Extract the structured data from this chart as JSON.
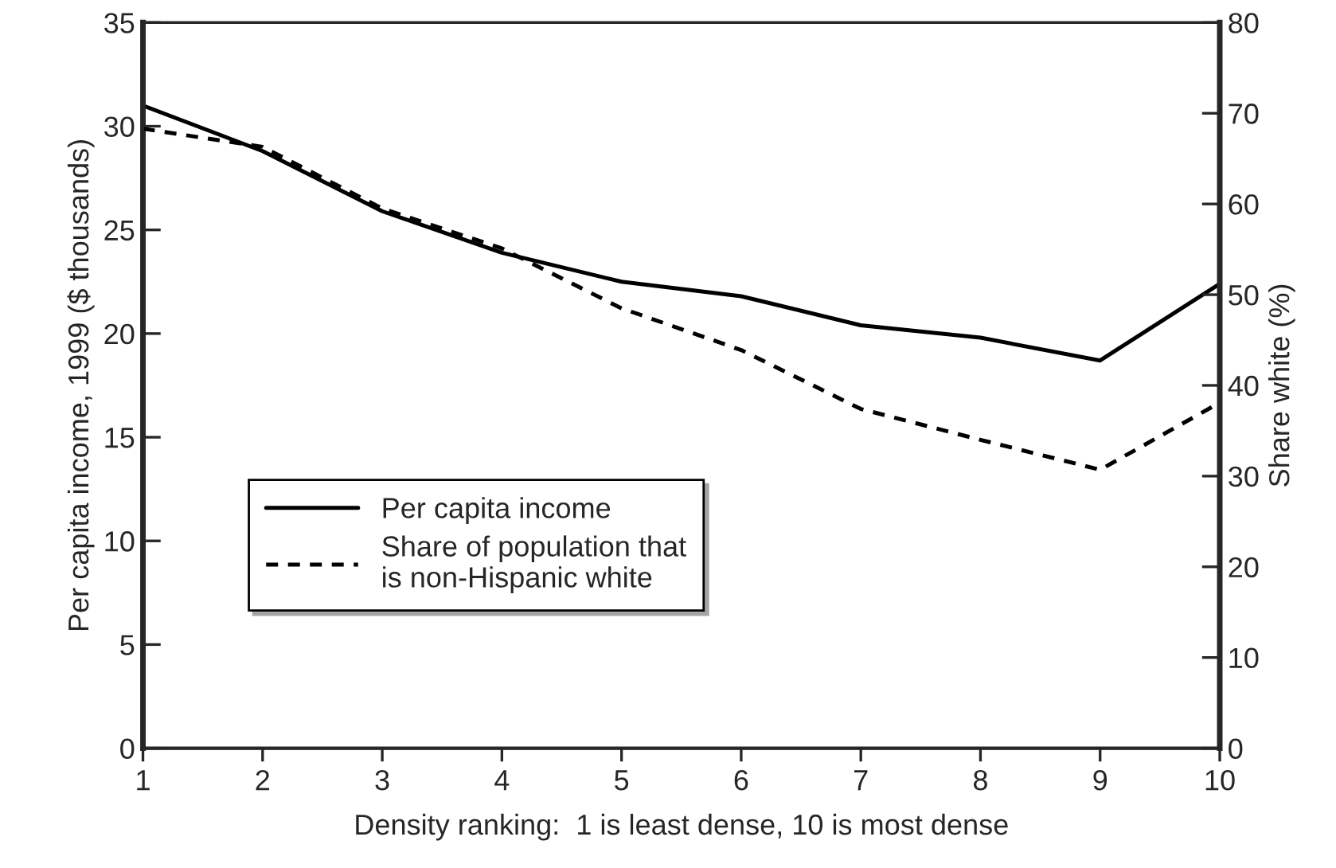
{
  "chart_data": {
    "type": "line",
    "xlabel": "Density ranking:  1 is least dense, 10 is most dense",
    "ylabel": "Per capita income, 1999 ($ thousands)",
    "y2label": "Share white (%)",
    "x": [
      1,
      2,
      3,
      4,
      5,
      6,
      7,
      8,
      9,
      10
    ],
    "series": [
      {
        "name": "Per capita income",
        "color": "#000000",
        "line_style": "solid",
        "values": [
          31.0,
          28.8,
          25.9,
          23.9,
          22.5,
          21.8,
          20.4,
          19.8,
          18.7,
          22.4
        ]
      },
      {
        "name": "Share of population that\nis non-Hispanic white",
        "color": "#000000",
        "line_style": "dashed",
        "axis": "y2",
        "values": [
          68.3,
          66.3,
          59.5,
          55.1,
          48.5,
          43.9,
          37.4,
          34.0,
          30.7,
          38.1
        ]
      }
    ],
    "xlim": [
      1,
      10
    ],
    "xticks": [
      1,
      2,
      3,
      4,
      5,
      6,
      7,
      8,
      9,
      10
    ],
    "ylim": [
      0,
      35
    ],
    "yticks": [
      0,
      5,
      10,
      15,
      20,
      25,
      30,
      35
    ],
    "y2lim": [
      0,
      80
    ],
    "y2ticks": [
      0,
      10,
      20,
      30,
      40,
      50,
      60,
      70,
      80
    ],
    "grid": false,
    "legend": "bottom left",
    "marker": "none"
  }
}
